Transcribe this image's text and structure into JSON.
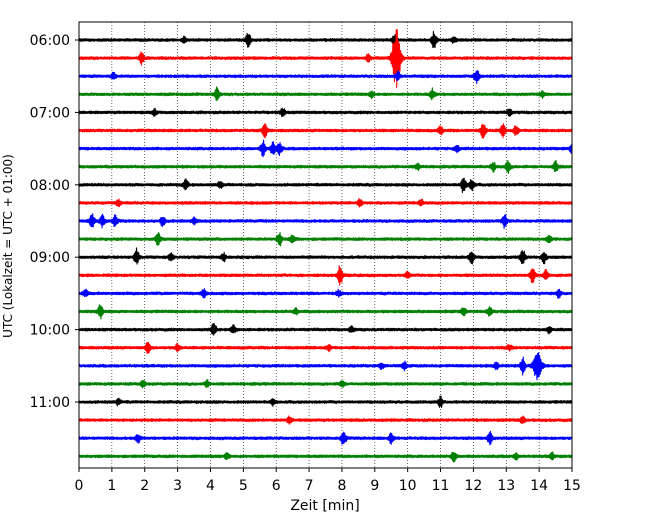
{
  "chart_data": {
    "type": "line",
    "title": "",
    "xlabel": "Zeit  [min]",
    "ylabel": "UTC (Lokalzeit = UTC + 01:00)",
    "xlim": [
      0,
      15
    ],
    "x_ticks": [
      0,
      1,
      2,
      3,
      4,
      5,
      6,
      7,
      8,
      9,
      10,
      11,
      12,
      13,
      14,
      15
    ],
    "y_ticks": [
      "06:00",
      "07:00",
      "08:00",
      "09:00",
      "10:00",
      "11:00"
    ],
    "grid": "vertical dotted lines at each minute",
    "colors": [
      "#000000",
      "#ff0000",
      "#0000ff",
      "#008000"
    ],
    "traces": [
      {
        "start": "06:00",
        "color": "#000000",
        "events": [
          [
            5.15,
            7
          ],
          [
            9.6,
            5
          ],
          [
            10.8,
            8
          ],
          [
            11.4,
            3
          ],
          [
            3.2,
            3
          ]
        ]
      },
      {
        "start": "06:15",
        "color": "#ff0000",
        "events": [
          [
            1.9,
            6
          ],
          [
            8.8,
            4
          ],
          [
            9.65,
            30
          ]
        ]
      },
      {
        "start": "06:30",
        "color": "#0000ff",
        "events": [
          [
            1.05,
            3
          ],
          [
            9.7,
            4
          ],
          [
            12.1,
            7
          ]
        ]
      },
      {
        "start": "06:45",
        "color": "#008000",
        "events": [
          [
            4.2,
            7
          ],
          [
            8.9,
            3
          ],
          [
            10.75,
            5
          ],
          [
            14.1,
            3
          ]
        ]
      },
      {
        "start": "07:00",
        "color": "#000000",
        "events": [
          [
            6.2,
            4
          ],
          [
            13.1,
            3
          ],
          [
            2.3,
            3
          ]
        ]
      },
      {
        "start": "07:15",
        "color": "#ff0000",
        "events": [
          [
            5.65,
            7
          ],
          [
            12.3,
            8
          ],
          [
            12.9,
            6
          ],
          [
            13.3,
            5
          ],
          [
            11.0,
            4
          ]
        ]
      },
      {
        "start": "07:30",
        "color": "#0000ff",
        "events": [
          [
            5.6,
            8
          ],
          [
            5.9,
            7
          ],
          [
            6.1,
            6
          ],
          [
            11.5,
            3
          ],
          [
            15.0,
            5
          ]
        ]
      },
      {
        "start": "07:45",
        "color": "#008000",
        "events": [
          [
            12.6,
            5
          ],
          [
            13.05,
            6
          ],
          [
            14.5,
            6
          ],
          [
            10.3,
            3
          ]
        ]
      },
      {
        "start": "08:00",
        "color": "#000000",
        "events": [
          [
            3.25,
            5
          ],
          [
            11.7,
            8
          ],
          [
            11.95,
            6
          ],
          [
            4.3,
            3
          ]
        ]
      },
      {
        "start": "08:15",
        "color": "#ff0000",
        "events": [
          [
            8.55,
            4
          ],
          [
            10.4,
            3
          ],
          [
            1.2,
            3
          ]
        ]
      },
      {
        "start": "08:30",
        "color": "#0000ff",
        "events": [
          [
            0.4,
            7
          ],
          [
            0.7,
            6
          ],
          [
            1.1,
            6
          ],
          [
            2.55,
            5
          ],
          [
            3.5,
            3
          ],
          [
            12.95,
            7
          ]
        ]
      },
      {
        "start": "08:45",
        "color": "#008000",
        "events": [
          [
            2.4,
            7
          ],
          [
            6.1,
            7
          ],
          [
            6.5,
            4
          ],
          [
            14.3,
            4
          ]
        ]
      },
      {
        "start": "09:00",
        "color": "#000000",
        "events": [
          [
            1.75,
            8
          ],
          [
            2.8,
            4
          ],
          [
            4.4,
            4
          ],
          [
            11.95,
            7
          ],
          [
            13.5,
            8
          ],
          [
            14.15,
            6
          ]
        ]
      },
      {
        "start": "09:15",
        "color": "#ff0000",
        "events": [
          [
            7.95,
            10
          ],
          [
            13.8,
            8
          ],
          [
            14.2,
            6
          ],
          [
            10.0,
            3
          ]
        ]
      },
      {
        "start": "09:30",
        "color": "#0000ff",
        "events": [
          [
            3.8,
            4
          ],
          [
            7.9,
            3
          ],
          [
            14.6,
            4
          ],
          [
            0.2,
            3
          ]
        ]
      },
      {
        "start": "09:45",
        "color": "#008000",
        "events": [
          [
            0.65,
            7
          ],
          [
            6.6,
            3
          ],
          [
            11.7,
            4
          ],
          [
            12.5,
            4
          ]
        ]
      },
      {
        "start": "10:00",
        "color": "#000000",
        "events": [
          [
            4.1,
            7
          ],
          [
            4.7,
            4
          ],
          [
            8.3,
            3
          ],
          [
            14.3,
            3
          ]
        ]
      },
      {
        "start": "10:15",
        "color": "#ff0000",
        "events": [
          [
            2.1,
            6
          ],
          [
            3.0,
            4
          ],
          [
            7.6,
            3
          ],
          [
            13.1,
            3
          ]
        ]
      },
      {
        "start": "10:30",
        "color": "#0000ff",
        "events": [
          [
            13.5,
            8
          ],
          [
            13.95,
            16
          ],
          [
            12.7,
            4
          ],
          [
            9.9,
            4
          ],
          [
            9.2,
            3
          ]
        ]
      },
      {
        "start": "10:45",
        "color": "#008000",
        "events": [
          [
            1.95,
            3
          ],
          [
            3.9,
            3
          ],
          [
            8.0,
            3
          ]
        ]
      },
      {
        "start": "11:00",
        "color": "#000000",
        "events": [
          [
            11.0,
            5
          ],
          [
            1.2,
            3
          ],
          [
            5.9,
            3
          ]
        ]
      },
      {
        "start": "11:15",
        "color": "#ff0000",
        "events": [
          [
            6.4,
            3
          ],
          [
            13.5,
            3
          ]
        ]
      },
      {
        "start": "11:30",
        "color": "#0000ff",
        "events": [
          [
            1.8,
            4
          ],
          [
            8.05,
            8
          ],
          [
            9.5,
            5
          ],
          [
            12.5,
            6
          ]
        ]
      },
      {
        "start": "11:45",
        "color": "#008000",
        "events": [
          [
            4.5,
            3
          ],
          [
            11.4,
            5
          ],
          [
            13.3,
            3
          ],
          [
            14.4,
            3
          ]
        ]
      }
    ]
  }
}
